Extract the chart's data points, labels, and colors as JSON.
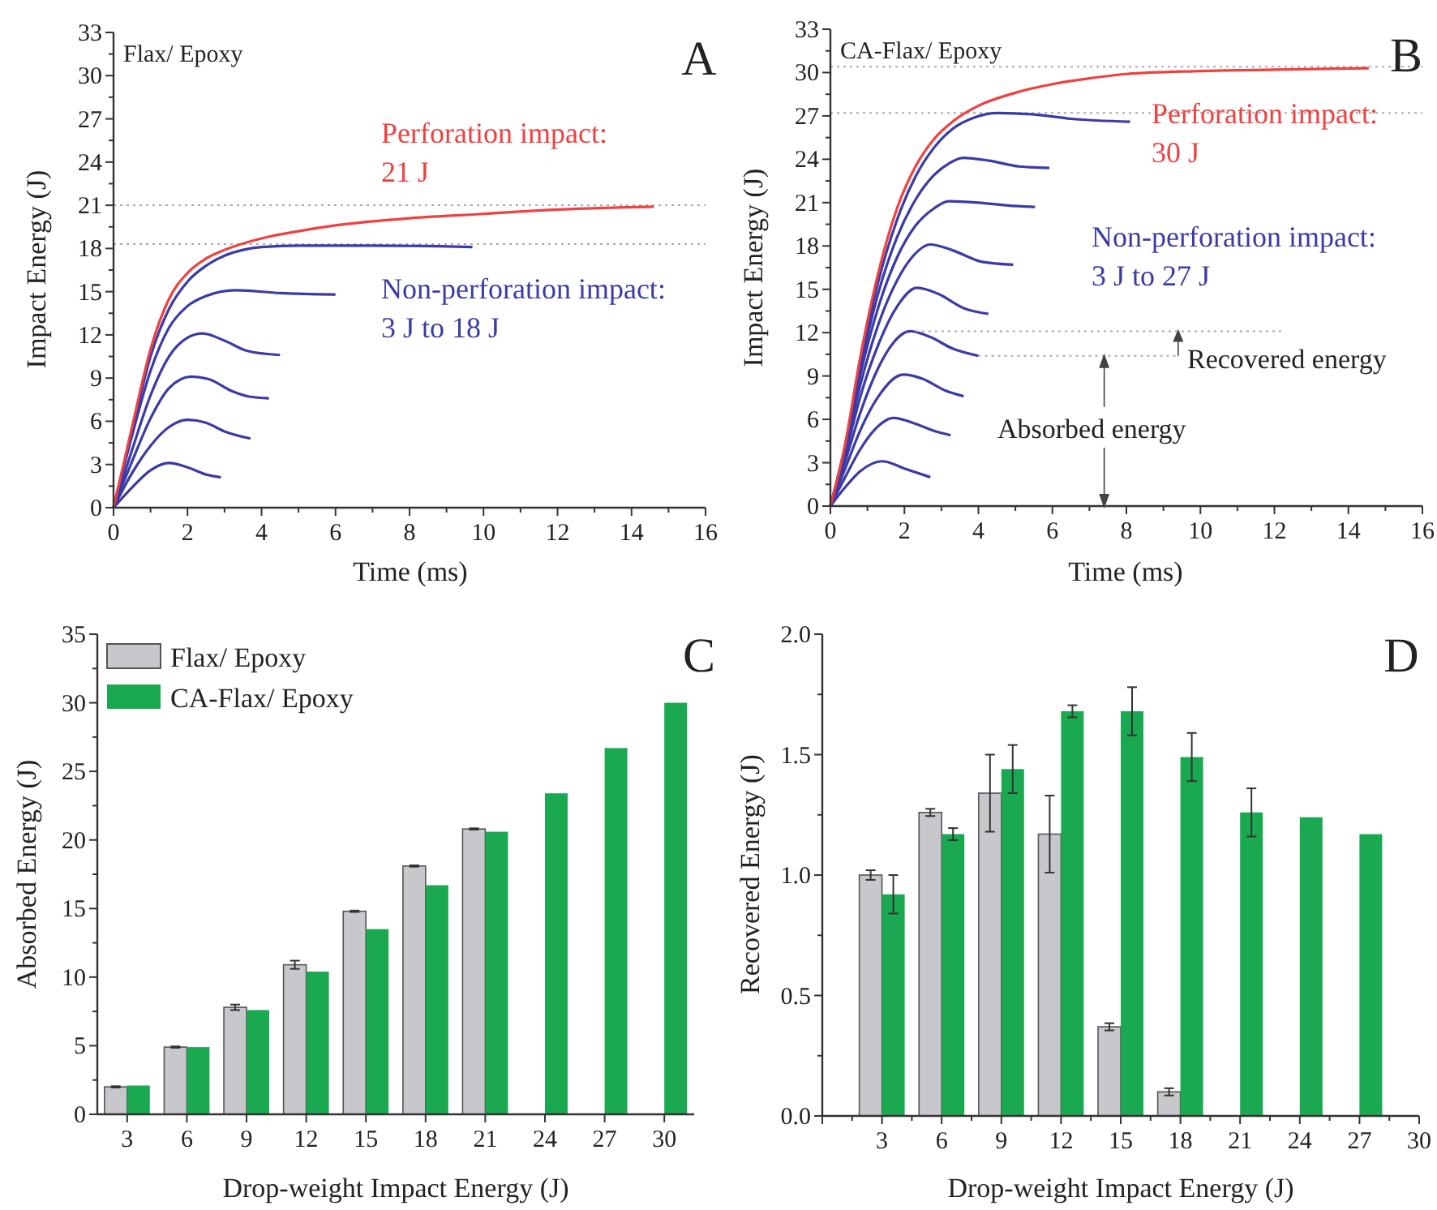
{
  "chart_data": [
    {
      "type": "line",
      "title": "Flax/ Epoxy",
      "xlabel": "Time (ms)",
      "ylabel": "Impact Energy (J)",
      "xlim": [
        0,
        16
      ],
      "xticks": [
        0,
        2,
        4,
        6,
        8,
        10,
        12,
        14,
        16
      ],
      "ylim": [
        0,
        33
      ],
      "yticks": [
        0,
        3,
        6,
        9,
        12,
        15,
        18,
        21,
        24,
        27,
        30,
        33
      ],
      "marker": "none",
      "line_style": "solid",
      "legend": false,
      "grid": false,
      "ref_lines": [
        {
          "axis": "y",
          "value": 21,
          "color": "#aaaaaa",
          "line_style": "dotted"
        },
        {
          "axis": "y",
          "value": 18.3,
          "color": "#aaaaaa",
          "line_style": "dotted"
        }
      ],
      "annotations": [
        "A",
        "Perforation impact:",
        "21 J",
        "Non-perforation impact:",
        "3 J to 18 J"
      ],
      "series": [
        {
          "color": "#3a3aa8",
          "x": [
            0,
            0.5,
            1,
            1.5,
            2,
            2.5,
            2.9
          ],
          "values": [
            0,
            1.4,
            2.6,
            3.1,
            2.8,
            2.3,
            2.1
          ]
        },
        {
          "color": "#3a3aa8",
          "x": [
            0,
            0.5,
            1,
            1.5,
            2,
            2.5,
            3,
            3.7
          ],
          "values": [
            0,
            2.4,
            4.3,
            5.6,
            6.1,
            5.9,
            5.3,
            4.8
          ]
        },
        {
          "color": "#3a3aa8",
          "x": [
            0,
            0.5,
            1,
            1.5,
            2.1,
            2.6,
            3.2,
            3.7,
            4.2
          ],
          "values": [
            0,
            3.2,
            6.2,
            8.3,
            9.1,
            8.9,
            8.1,
            7.7,
            7.6
          ]
        },
        {
          "color": "#3a3aa8",
          "x": [
            0,
            0.5,
            1,
            1.5,
            2,
            2.4,
            3,
            3.6,
            4.5
          ],
          "values": [
            0,
            4,
            7.8,
            10.5,
            11.8,
            12.1,
            11.6,
            10.9,
            10.6
          ]
        },
        {
          "color": "#3a3aa8",
          "x": [
            0,
            0.5,
            1,
            1.5,
            2,
            2.5,
            3.3,
            4.5,
            6
          ],
          "values": [
            0,
            5,
            9.5,
            12.5,
            14,
            14.7,
            15.1,
            14.9,
            14.8
          ]
        },
        {
          "color": "#3a3aa8",
          "x": [
            0,
            0.5,
            1,
            1.5,
            2,
            2.5,
            3,
            3.5,
            4,
            5,
            7,
            9.7
          ],
          "values": [
            0,
            5.3,
            10.5,
            13.8,
            15.7,
            16.8,
            17.5,
            17.9,
            18.1,
            18.2,
            18.2,
            18.1
          ]
        },
        {
          "color": "#f04040",
          "x": [
            0,
            0.5,
            1,
            1.5,
            2,
            2.5,
            3,
            4,
            5,
            6,
            8,
            10,
            12,
            14.6
          ],
          "values": [
            0,
            5.6,
            11,
            14.5,
            16.3,
            17.3,
            17.9,
            18.7,
            19.2,
            19.6,
            20.1,
            20.4,
            20.7,
            20.9
          ]
        }
      ]
    },
    {
      "type": "line",
      "title": "CA-Flax/ Epoxy",
      "xlabel": "Time (ms)",
      "ylabel": "Impact Energy (J)",
      "xlim": [
        0,
        16
      ],
      "xticks": [
        0,
        2,
        4,
        6,
        8,
        10,
        12,
        14,
        16
      ],
      "ylim": [
        0,
        33
      ],
      "yticks": [
        0,
        3,
        6,
        9,
        12,
        15,
        18,
        21,
        24,
        27,
        30,
        33
      ],
      "marker": "none",
      "line_style": "solid",
      "legend": false,
      "grid": false,
      "ref_lines": [
        {
          "axis": "y",
          "value": 30.4,
          "color": "#aaaaaa",
          "line_style": "dotted"
        },
        {
          "axis": "y",
          "value": 27.2,
          "color": "#aaaaaa",
          "line_style": "dotted"
        }
      ],
      "annotations": [
        "B",
        "Perforation impact:",
        "30 J",
        "Non-perforation impact:",
        "3 J to 27 J",
        "Recovered energy",
        {
          "text": "Absorbed energy",
          "x": 7.4,
          "y": 10.4
        }
      ],
      "series": [
        {
          "color": "#3a3aa8",
          "x": [
            0,
            0.4,
            0.8,
            1.4,
            2,
            2.7
          ],
          "values": [
            0,
            1.3,
            2.4,
            3.1,
            2.6,
            2.0
          ]
        },
        {
          "color": "#3a3aa8",
          "x": [
            0,
            0.4,
            0.8,
            1.2,
            1.7,
            2.3,
            2.8,
            3.25
          ],
          "values": [
            0,
            2,
            3.9,
            5.3,
            6.1,
            5.7,
            5.2,
            4.9
          ]
        },
        {
          "color": "#3a3aa8",
          "x": [
            0,
            0.4,
            0.8,
            1.3,
            1.97,
            2.5,
            3.1,
            3.6
          ],
          "values": [
            0,
            2.6,
            5.2,
            7.6,
            9.1,
            8.8,
            8.0,
            7.6
          ]
        },
        {
          "color": "#3a3aa8",
          "x": [
            0,
            0.4,
            0.8,
            1.3,
            1.7,
            2.15,
            2.7,
            3.3,
            4.0
          ],
          "values": [
            0,
            3.1,
            6.4,
            9.6,
            11.3,
            12.1,
            11.7,
            10.9,
            10.4
          ]
        },
        {
          "color": "#3a3aa8",
          "x": [
            0,
            0.4,
            0.8,
            1.3,
            1.8,
            2.34,
            2.9,
            3.6,
            4.27
          ],
          "values": [
            0,
            3.5,
            7.5,
            11.2,
            13.8,
            15.1,
            14.7,
            13.7,
            13.3
          ]
        },
        {
          "color": "#3a3aa8",
          "x": [
            0,
            0.4,
            0.8,
            1.3,
            1.8,
            2.2,
            2.7,
            3.3,
            4.1,
            4.94
          ],
          "values": [
            0,
            3.8,
            8.3,
            12.6,
            15.6,
            17.2,
            18.1,
            17.7,
            16.9,
            16.7
          ]
        },
        {
          "color": "#3a3aa8",
          "x": [
            0,
            0.4,
            0.8,
            1.3,
            1.8,
            2.3,
            2.8,
            3.2,
            4.0,
            4.8,
            5.53
          ],
          "values": [
            0,
            4,
            9,
            13.8,
            17.2,
            19.4,
            20.6,
            21.1,
            21.0,
            20.8,
            20.7
          ]
        },
        {
          "color": "#3a3aa8",
          "x": [
            0,
            0.4,
            0.8,
            1.3,
            1.8,
            2.3,
            2.8,
            3.2,
            3.58,
            4.3,
            5.1,
            5.92
          ],
          "values": [
            0,
            4.1,
            9.4,
            14.8,
            18.6,
            21.2,
            22.9,
            23.7,
            24.1,
            23.9,
            23.5,
            23.4
          ]
        },
        {
          "color": "#3a3aa8",
          "x": [
            0,
            0.4,
            0.8,
            1.3,
            1.8,
            2.3,
            2.8,
            3.3,
            3.9,
            4.53,
            5.5,
            6.5,
            8.1
          ],
          "values": [
            0,
            4.2,
            9.8,
            15.6,
            19.8,
            22.8,
            24.8,
            26.1,
            26.9,
            27.2,
            27.1,
            26.8,
            26.6
          ]
        },
        {
          "color": "#f04040",
          "x": [
            0,
            0.4,
            0.8,
            1.3,
            1.8,
            2.3,
            2.8,
            3.3,
            4,
            5,
            6,
            7,
            8,
            10,
            12,
            14.55
          ],
          "values": [
            0,
            4.3,
            10.2,
            16.2,
            20.6,
            23.5,
            25.4,
            26.6,
            27.7,
            28.6,
            29.2,
            29.6,
            29.9,
            30.1,
            30.2,
            30.3
          ]
        },
        {
          "color": "#aaaaaa",
          "line_style": "dotted",
          "x": [
            2.3,
            12.2
          ],
          "values": [
            12.1,
            12.1
          ]
        },
        {
          "color": "#aaaaaa",
          "line_style": "dotted",
          "x": [
            4.0,
            9.4
          ],
          "values": [
            10.4,
            10.4
          ]
        }
      ]
    },
    {
      "type": "bar",
      "xlabel": "Drop-weight Impact Energy (J)",
      "ylabel": "Absorbed Energy (J)",
      "categories": [
        "3",
        "6",
        "9",
        "12",
        "15",
        "18",
        "21",
        "24",
        "27",
        "30"
      ],
      "ylim": [
        0,
        35
      ],
      "yticks": [
        0,
        5,
        10,
        15,
        20,
        25,
        30,
        35
      ],
      "legend": "top left",
      "grid": false,
      "annotations": [
        "C"
      ],
      "series": [
        {
          "name": "Flax/ Epoxy",
          "color": "#c8c8cc",
          "values": [
            2.0,
            4.9,
            7.8,
            10.9,
            14.8,
            18.1,
            20.8,
            null,
            null,
            null
          ],
          "errors": [
            0.05,
            0.05,
            0.2,
            0.3,
            0.05,
            0.05,
            0.05,
            null,
            null,
            null
          ]
        },
        {
          "name": "CA-Flax/ Epoxy",
          "color": "#1aa850",
          "values": [
            2.1,
            4.9,
            7.6,
            10.4,
            13.5,
            16.7,
            20.6,
            23.4,
            26.7,
            30.0
          ]
        }
      ]
    },
    {
      "type": "bar",
      "xlabel": "Drop-weight Impact Energy (J)",
      "ylabel": "Recovered Energy (J)",
      "x": [
        3,
        6,
        9,
        12,
        15,
        18,
        21,
        24,
        27
      ],
      "xlim": [
        0,
        30
      ],
      "xticks": [
        {
          "value": 0,
          "label": null
        },
        3,
        6,
        9,
        12,
        15,
        18,
        21,
        24,
        27,
        30
      ],
      "ylim": [
        0,
        2.0
      ],
      "yticks": [
        {
          "value": 0,
          "label": "0.0"
        },
        {
          "value": 0.5,
          "label": "0.5"
        },
        {
          "value": 1,
          "label": "1.0"
        },
        {
          "value": 1.5,
          "label": "1.5"
        },
        {
          "value": 2,
          "label": "2.0"
        }
      ],
      "grid": false,
      "annotations": [
        "D"
      ],
      "series": [
        {
          "color": "#c8c8cc",
          "values": [
            1.0,
            1.26,
            1.34,
            1.17,
            0.37,
            0.1,
            null,
            null,
            null
          ],
          "errors": [
            0.02,
            0.015,
            0.16,
            0.16,
            0.015,
            0.015,
            null,
            null,
            null
          ]
        },
        {
          "color": "#1aa850",
          "values": [
            0.92,
            1.17,
            1.44,
            1.68,
            1.68,
            1.49,
            1.26,
            1.24,
            1.17
          ],
          "errors": [
            0.08,
            0.025,
            0.1,
            0.025,
            0.1,
            0.1,
            0.1,
            null,
            null
          ]
        }
      ]
    }
  ]
}
